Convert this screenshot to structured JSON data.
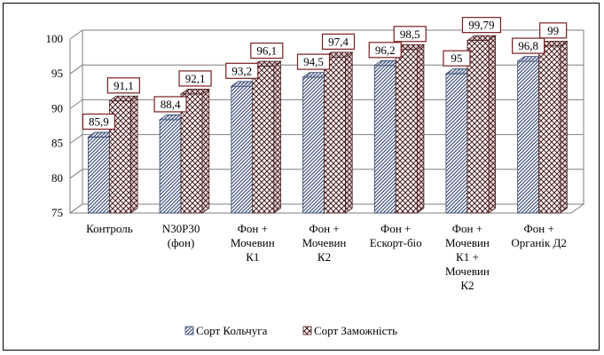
{
  "chart_data": {
    "type": "bar",
    "subtype": "3d-clustered-column",
    "categories": [
      [
        "Контроль"
      ],
      [
        "N30P30",
        "(фон)"
      ],
      [
        "Фон +",
        "Мочевин",
        "К1"
      ],
      [
        "Фон +",
        "Мочевин",
        "К2"
      ],
      [
        "Фон +",
        "Ескорт-біо"
      ],
      [
        "Фон +",
        "Мочевин",
        "К1 +",
        "Мочевин",
        "К2"
      ],
      [
        "Фон +",
        "Органік Д2"
      ]
    ],
    "series": [
      {
        "name": "Сорт Кольчуга",
        "values": [
          85.9,
          88.4,
          93.2,
          94.5,
          96.2,
          95.0,
          96.8
        ],
        "labels": [
          "85,9",
          "88,4",
          "93,2",
          "94,5",
          "96,2",
          "95",
          "96,8"
        ],
        "pattern": "fine-hatch",
        "color": "#3a4f7a"
      },
      {
        "name": "Сорт Заможність",
        "values": [
          91.1,
          92.1,
          96.1,
          97.4,
          98.5,
          99.79,
          99.0
        ],
        "labels": [
          "91,1",
          "92,1",
          "96,1",
          "97,4",
          "98,5",
          "99,79",
          "99"
        ],
        "pattern": "crosshatch",
        "color": "#7a2a2a"
      }
    ],
    "yticks": [
      "75",
      "80",
      "85",
      "90",
      "95",
      "100"
    ],
    "ylim": [
      75,
      100
    ],
    "grid": true,
    "legend": "bottom",
    "label_box_color": "#7a1f1f"
  }
}
